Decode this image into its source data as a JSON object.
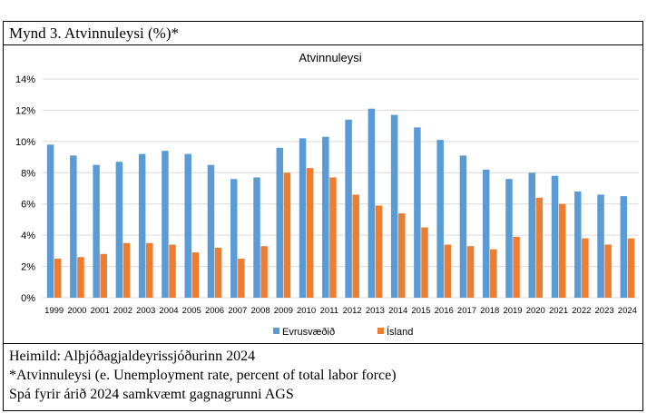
{
  "header": {
    "title": "Mynd 3. Atvinnuleysi (%)*"
  },
  "footer": {
    "source": "Heimild: Alþjóðagjaldeyrissjóðurinn 2024",
    "note": "*Atvinnuleysi (e. Unemployment rate, percent of total labor force)",
    "forecast": "Spá fyrir árið 2024 samkvæmt gagnagrunni AGS"
  },
  "chart_data": {
    "type": "bar",
    "title": "Atvinnuleysi",
    "xlabel": "",
    "ylabel": "",
    "ylim": [
      0,
      14
    ],
    "yticks": [
      "0%",
      "2%",
      "4%",
      "6%",
      "8%",
      "10%",
      "12%",
      "14%"
    ],
    "grid": true,
    "legend_position": "bottom",
    "categories": [
      "1999",
      "2000",
      "2001",
      "2002",
      "2003",
      "2004",
      "2005",
      "2006",
      "2007",
      "2008",
      "2009",
      "2010",
      "2011",
      "2012",
      "2013",
      "2014",
      "2015",
      "2016",
      "2017",
      "2018",
      "2019",
      "2020",
      "2021",
      "2022",
      "2023",
      "2024"
    ],
    "series": [
      {
        "name": "Evrusvæðið",
        "color": "#5b9bd5",
        "values": [
          9.8,
          9.1,
          8.5,
          8.7,
          9.2,
          9.4,
          9.2,
          8.5,
          7.6,
          7.7,
          9.6,
          10.2,
          10.3,
          11.4,
          12.1,
          11.7,
          10.9,
          10.1,
          9.1,
          8.2,
          7.6,
          8.0,
          7.8,
          6.8,
          6.6,
          6.5
        ]
      },
      {
        "name": "Ísland",
        "color": "#ed7d31",
        "values": [
          2.5,
          2.6,
          2.8,
          3.5,
          3.5,
          3.4,
          2.9,
          3.2,
          2.5,
          3.3,
          8.0,
          8.3,
          7.7,
          6.6,
          5.9,
          5.4,
          4.5,
          3.4,
          3.3,
          3.1,
          3.9,
          6.4,
          6.0,
          3.8,
          3.4,
          3.8
        ]
      }
    ]
  }
}
